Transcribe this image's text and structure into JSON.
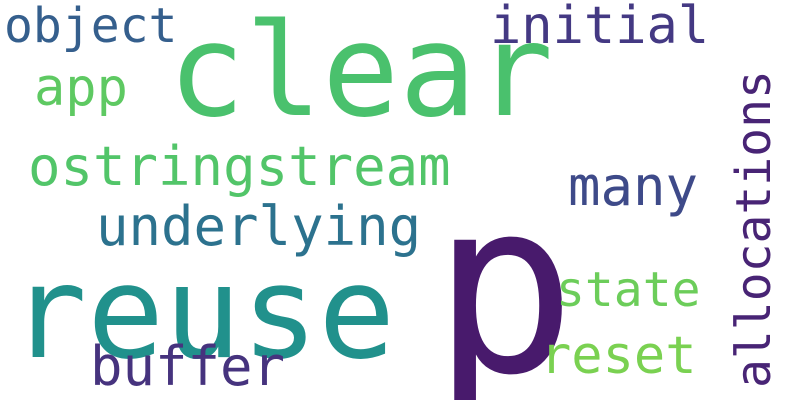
{
  "words": {
    "object": {
      "text": "object",
      "color": "#355f8d"
    },
    "clear": {
      "text": "clear",
      "color": "#4ac16d"
    },
    "initial": {
      "text": "initial",
      "color": "#443983"
    },
    "app": {
      "text": "app",
      "color": "#5ec962"
    },
    "ostringstream": {
      "text": "ostringstream",
      "color": "#52c569"
    },
    "many": {
      "text": "many",
      "color": "#3e4a89"
    },
    "underlying": {
      "text": "underlying",
      "color": "#2c728e"
    },
    "reuse": {
      "text": "reuse",
      "color": "#21918c"
    },
    "p": {
      "text": "p",
      "color": "#481a6c"
    },
    "state": {
      "text": "state",
      "color": "#6ccd5a"
    },
    "reset": {
      "text": "reset",
      "color": "#7ad151"
    },
    "buffer": {
      "text": "buffer",
      "color": "#46337e"
    },
    "allocations": {
      "text": "allocations",
      "color": "#482475"
    }
  }
}
